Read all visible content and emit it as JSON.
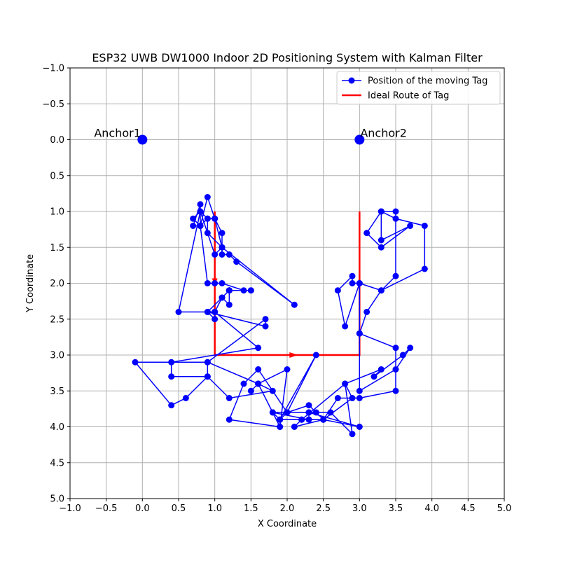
{
  "chart_data": {
    "type": "scatter",
    "title": "ESP32 UWB DW1000 Indoor 2D Positioning System with Kalman Filter",
    "xlabel": "X Coordinate",
    "ylabel": "Y Coordinate",
    "xlim": [
      -1.0,
      5.0
    ],
    "ylim": [
      -1.0,
      5.0
    ],
    "y_inverted": true,
    "grid": true,
    "legend_position": "top-right",
    "x_tick_labels": [
      "−1.0",
      "−0.5",
      "0.0",
      "0.5",
      "1.0",
      "1.5",
      "2.0",
      "2.5",
      "3.0",
      "3.5",
      "4.0",
      "4.5",
      "5.0"
    ],
    "y_tick_labels": [
      "−1.0",
      "−0.5",
      "0.0",
      "0.5",
      "1.0",
      "1.5",
      "2.0",
      "2.5",
      "3.0",
      "3.5",
      "4.0",
      "4.5",
      "5.0"
    ],
    "anchors": [
      {
        "label": "Anchor1",
        "x": 0.0,
        "y": 0.0
      },
      {
        "label": "Anchor2",
        "x": 3.0,
        "y": 0.0
      }
    ],
    "series": [
      {
        "name": "Position of the moving Tag",
        "color": "#0000ff",
        "marker": "circle",
        "x": [
          1.0,
          1.0,
          0.9,
          1.1,
          1.2,
          1.2,
          1.5,
          1.2,
          1.4,
          1.1,
          1.0,
          0.9,
          0.8,
          0.7,
          0.8,
          0.9,
          0.9,
          1.1,
          1.0,
          0.9,
          0.8,
          0.8,
          0.7,
          0.8,
          0.9,
          1.0,
          1.1,
          1.1,
          1.2,
          1.3,
          2.1,
          1.1,
          1.0,
          0.8,
          0.5,
          1.0,
          1.6,
          0.4,
          0.4,
          0.9,
          0.9,
          -0.1,
          0.4,
          0.6,
          0.9,
          1.2,
          1.8,
          1.6,
          1.5,
          1.6,
          2.0,
          1.9,
          1.2,
          1.4,
          1.6,
          2.0,
          2.4,
          1.9,
          1.8,
          2.3,
          2.4,
          2.6,
          2.9,
          2.8,
          2.2,
          2.1,
          2.5,
          2.9,
          2.8,
          3.3,
          3.2,
          3.6,
          3.7,
          3.5,
          3.0,
          3.0,
          3.1,
          3.3,
          3.9,
          3.9,
          3.5,
          3.3,
          3.3,
          3.7,
          3.3,
          3.1,
          3.3,
          3.5,
          3.5,
          3.3,
          3.0,
          2.9,
          2.9,
          2.7,
          2.8,
          3.0,
          3.0,
          3.5,
          3.5,
          3.0,
          2.7,
          2.5,
          2.3,
          2.0,
          1.9,
          1.8,
          2.3,
          2.3,
          3.0,
          2.5,
          2.2,
          1.9,
          1.9,
          1.6,
          0.9,
          1.7,
          1.7,
          0.9,
          1.0,
          1.1,
          1.2,
          1.5,
          1.2
        ],
        "y": [
          2.4,
          2.5,
          2.4,
          2.2,
          2.3,
          2.1,
          2.1,
          2.1,
          2.1,
          2.0,
          2.0,
          2.0,
          1.2,
          1.1,
          1.0,
          1.1,
          1.3,
          1.5,
          1.1,
          1.1,
          1.2,
          0.9,
          1.2,
          1.2,
          0.8,
          1.1,
          1.3,
          1.6,
          1.6,
          1.7,
          2.3,
          1.5,
          1.6,
          1.0,
          2.4,
          2.4,
          2.9,
          3.1,
          3.3,
          3.3,
          3.1,
          3.1,
          3.7,
          3.6,
          3.3,
          3.6,
          3.5,
          3.4,
          3.5,
          3.4,
          3.2,
          4.0,
          3.9,
          3.4,
          3.2,
          3.8,
          3.0,
          3.9,
          3.8,
          3.8,
          3.8,
          3.8,
          4.1,
          3.4,
          3.9,
          4.0,
          3.9,
          3.6,
          3.4,
          3.2,
          3.3,
          3.0,
          2.9,
          3.2,
          3.5,
          2.7,
          2.4,
          2.1,
          1.8,
          1.2,
          1.1,
          1.0,
          1.4,
          1.2,
          1.5,
          1.3,
          1.0,
          1.0,
          1.9,
          2.1,
          2.0,
          2.0,
          1.9,
          2.1,
          2.6,
          2.0,
          2.7,
          2.9,
          3.5,
          3.6,
          3.6,
          3.9,
          3.7,
          3.8,
          3.9,
          3.8,
          3.9,
          3.8,
          4.0,
          3.9,
          3.9,
          3.9,
          4.0,
          3.4,
          3.1,
          2.5,
          2.6,
          2.4,
          2.4,
          2.2,
          2.1,
          2.1,
          2.1
        ]
      },
      {
        "name": "Ideal Route of Tag",
        "color": "#ff0000",
        "x": [
          1.0,
          1.0,
          3.0,
          3.0
        ],
        "y": [
          1.0,
          3.0,
          3.0,
          1.0
        ],
        "arrows": [
          {
            "x": 1.0,
            "y": 2.0,
            "direction": "down"
          },
          {
            "x": 2.1,
            "y": 3.0,
            "direction": "right"
          },
          {
            "x": 3.0,
            "y": 1.95,
            "direction": "up"
          }
        ]
      }
    ]
  }
}
